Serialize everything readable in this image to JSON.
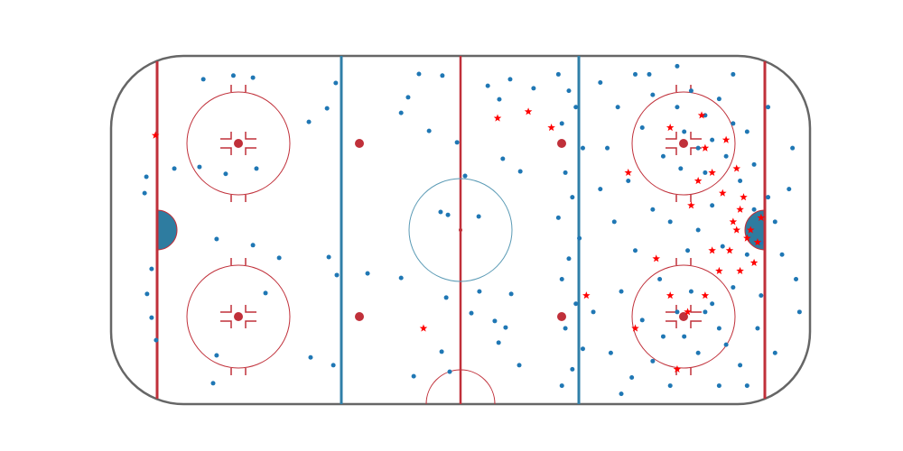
{
  "chart_data": {
    "type": "scatter",
    "xlim": [
      -100,
      100
    ],
    "ylim": [
      -42.5,
      42.5
    ],
    "series": [
      {
        "color": "#1f77b4",
        "marker": "circle",
        "x": [
          -73.6,
          -65,
          -59.4,
          -89.9,
          -90.4,
          -81.9,
          -74.7,
          -67.2,
          -58.4,
          -69.8,
          -59.4,
          -88.4,
          -89.7,
          -88.4,
          -87.1,
          -69.8,
          -70.8,
          -55.8,
          -51.9,
          -43.4,
          -35.7,
          -38.2,
          -37.7,
          -35.4,
          -42.9,
          -36.4,
          -11.9,
          -15,
          -17,
          -5.2,
          -9,
          -1,
          1.3,
          -5.7,
          5.2,
          -3.6,
          -26.6,
          -17,
          -4.1,
          5.4,
          14.5,
          3.1,
          -13.4,
          -5.4,
          -3.1,
          9.8,
          10.9,
          16.8,
          14.2,
          7.8,
          11.1,
          17.1,
          20.9,
          12.1,
          12.9,
          28,
          31,
          33,
          29,
          35,
          30,
          32,
          28,
          34,
          31,
          29,
          33,
          30,
          35,
          32,
          29,
          40,
          45,
          50,
          55,
          42,
          48,
          52,
          58,
          44,
          50,
          55,
          46,
          52,
          57,
          43,
          49,
          55,
          60,
          62,
          66,
          70,
          74,
          64,
          68,
          72,
          76,
          63,
          70,
          78,
          80,
          66,
          70,
          74,
          64,
          68,
          72,
          76,
          62,
          78,
          80,
          84,
          86,
          82,
          88,
          84,
          86,
          90,
          92,
          94,
          96,
          82,
          85,
          60,
          65,
          72,
          75,
          68,
          58,
          54,
          88,
          90,
          95,
          97,
          40,
          38,
          46,
          62,
          78,
          82,
          74
        ],
        "y": [
          36.8,
          37.7,
          37.2,
          13,
          9,
          15,
          15.4,
          13.7,
          15,
          -2.2,
          -3.7,
          -9.5,
          -15.6,
          -21.4,
          -26.9,
          -30.6,
          -37.4,
          -15.4,
          -6.8,
          26.4,
          35.9,
          29.7,
          -6.6,
          -11,
          -31.1,
          -33,
          38.1,
          32.4,
          28.6,
          37.7,
          24.2,
          21.4,
          13.2,
          4.4,
          3.3,
          3.7,
          -10.6,
          -11.7,
          -16.5,
          -15,
          -15.6,
          -20.3,
          -35.7,
          -29.7,
          -34.6,
          -22.2,
          -27.5,
          -33,
          36.8,
          35.2,
          31.9,
          14.3,
          34.6,
          17.4,
          -23.8,
          38,
          34,
          30,
          26,
          20,
          14,
          8,
          3,
          -2,
          -7,
          -12,
          -18,
          -24,
          -29,
          -34,
          -38,
          36,
          30,
          38,
          33,
          20,
          12,
          25,
          18,
          2,
          -5,
          5,
          -15,
          -22,
          -12,
          -30,
          -36,
          -32,
          -38,
          30,
          34,
          28,
          32,
          24,
          20,
          22,
          18,
          15,
          14,
          26,
          12,
          -15,
          -20,
          -24,
          -26,
          -30,
          -18,
          -28,
          -20,
          -14,
          -33,
          5,
          -3,
          -6,
          8,
          16,
          -16,
          2,
          -6,
          10,
          -12,
          24,
          -24,
          2,
          -5,
          6,
          -4,
          0,
          -26,
          38,
          30,
          -30,
          20,
          -20,
          10,
          -20,
          -40,
          40,
          38,
          -38,
          -38
        ]
      },
      {
        "color": "#ff0000",
        "marker": "star",
        "x": [
          -87.3,
          10.6,
          19.4,
          -10.6,
          70,
          68,
          72,
          75,
          66,
          78,
          80,
          82,
          79,
          77,
          74,
          70,
          65,
          60,
          84,
          86,
          81,
          76,
          69,
          62,
          50,
          48,
          56,
          72,
          80,
          85,
          83,
          79,
          60,
          36,
          26
        ],
        "y": [
          23.1,
          27.3,
          28.9,
          -24,
          20,
          12,
          14,
          9,
          6,
          2,
          5,
          -2,
          0,
          -5,
          -10,
          -16,
          -20,
          -16,
          -8,
          3,
          8,
          22,
          28,
          -34,
          -24,
          14,
          -7,
          -5,
          -10,
          -3,
          0,
          15,
          25,
          -16,
          25
        ]
      }
    ]
  }
}
